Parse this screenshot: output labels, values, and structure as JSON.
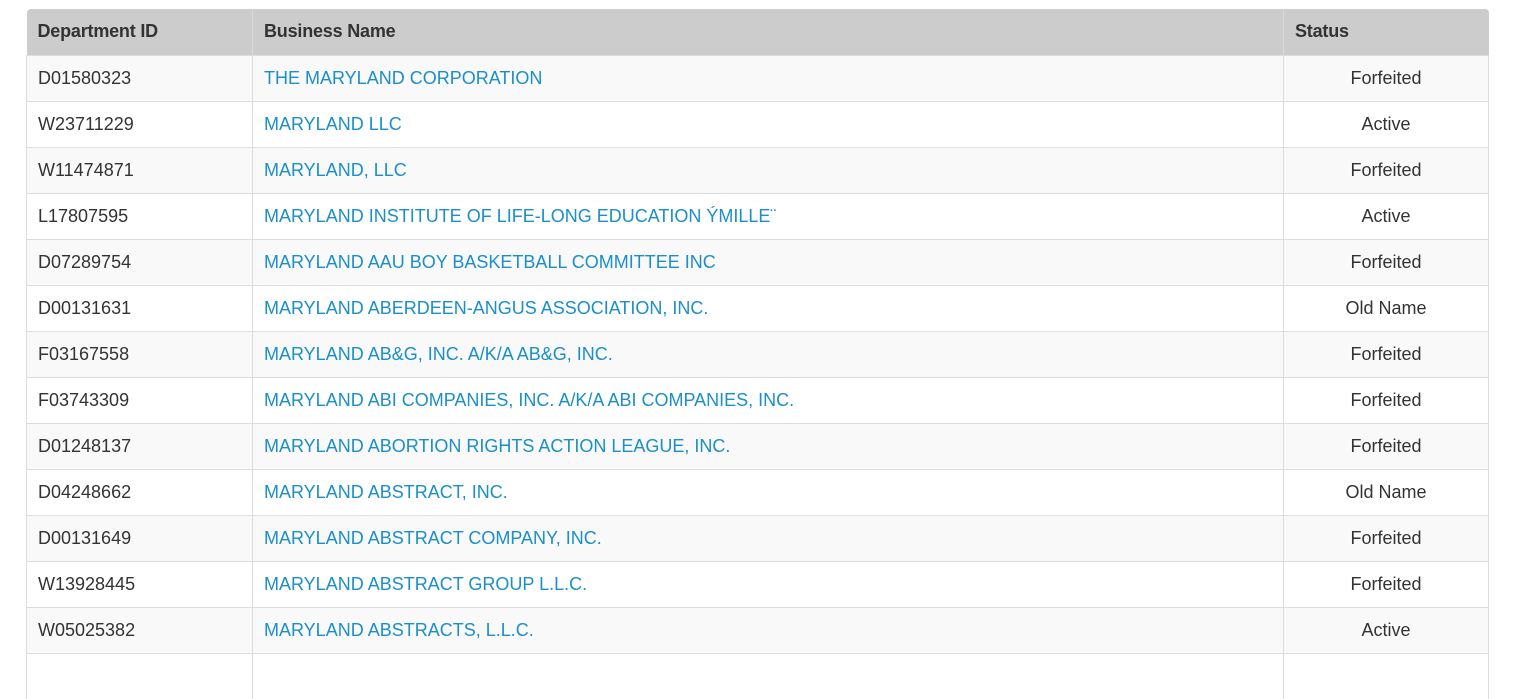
{
  "table": {
    "headers": {
      "department_id": "Department ID",
      "business_name": "Business Name",
      "status": "Status"
    },
    "rows": [
      {
        "id": "D01580323",
        "name": "THE MARYLAND CORPORATION",
        "status": "Forfeited"
      },
      {
        "id": "W23711229",
        "name": "MARYLAND LLC",
        "status": "Active"
      },
      {
        "id": "W11474871",
        "name": "MARYLAND, LLC",
        "status": "Forfeited"
      },
      {
        "id": "L17807595",
        "name": "MARYLAND INSTITUTE OF LIFE-LONG EDUCATION ÝMILLE¨",
        "status": "Active"
      },
      {
        "id": "D07289754",
        "name": "MARYLAND AAU BOY BASKETBALL COMMITTEE INC",
        "status": "Forfeited"
      },
      {
        "id": "D00131631",
        "name": "MARYLAND ABERDEEN-ANGUS ASSOCIATION, INC.",
        "status": "Old Name"
      },
      {
        "id": "F03167558",
        "name": "MARYLAND AB&G, INC. A/K/A AB&G, INC.",
        "status": "Forfeited"
      },
      {
        "id": "F03743309",
        "name": "MARYLAND ABI COMPANIES, INC. A/K/A ABI COMPANIES, INC.",
        "status": "Forfeited"
      },
      {
        "id": "D01248137",
        "name": "MARYLAND ABORTION RIGHTS ACTION LEAGUE, INC.",
        "status": "Forfeited"
      },
      {
        "id": "D04248662",
        "name": "MARYLAND ABSTRACT, INC.",
        "status": "Old Name"
      },
      {
        "id": "D00131649",
        "name": "MARYLAND ABSTRACT COMPANY, INC.",
        "status": "Forfeited"
      },
      {
        "id": "W13928445",
        "name": "MARYLAND ABSTRACT GROUP L.L.C.",
        "status": "Forfeited"
      },
      {
        "id": "W05025382",
        "name": "MARYLAND ABSTRACTS, L.L.C.",
        "status": "Active"
      },
      {
        "id": "",
        "name": "",
        "status": ""
      }
    ],
    "colors": {
      "header_bg": "#cccccc",
      "link": "#1a8fc9",
      "row_alt": "#f9f9f9",
      "border": "#dddddd"
    }
  }
}
